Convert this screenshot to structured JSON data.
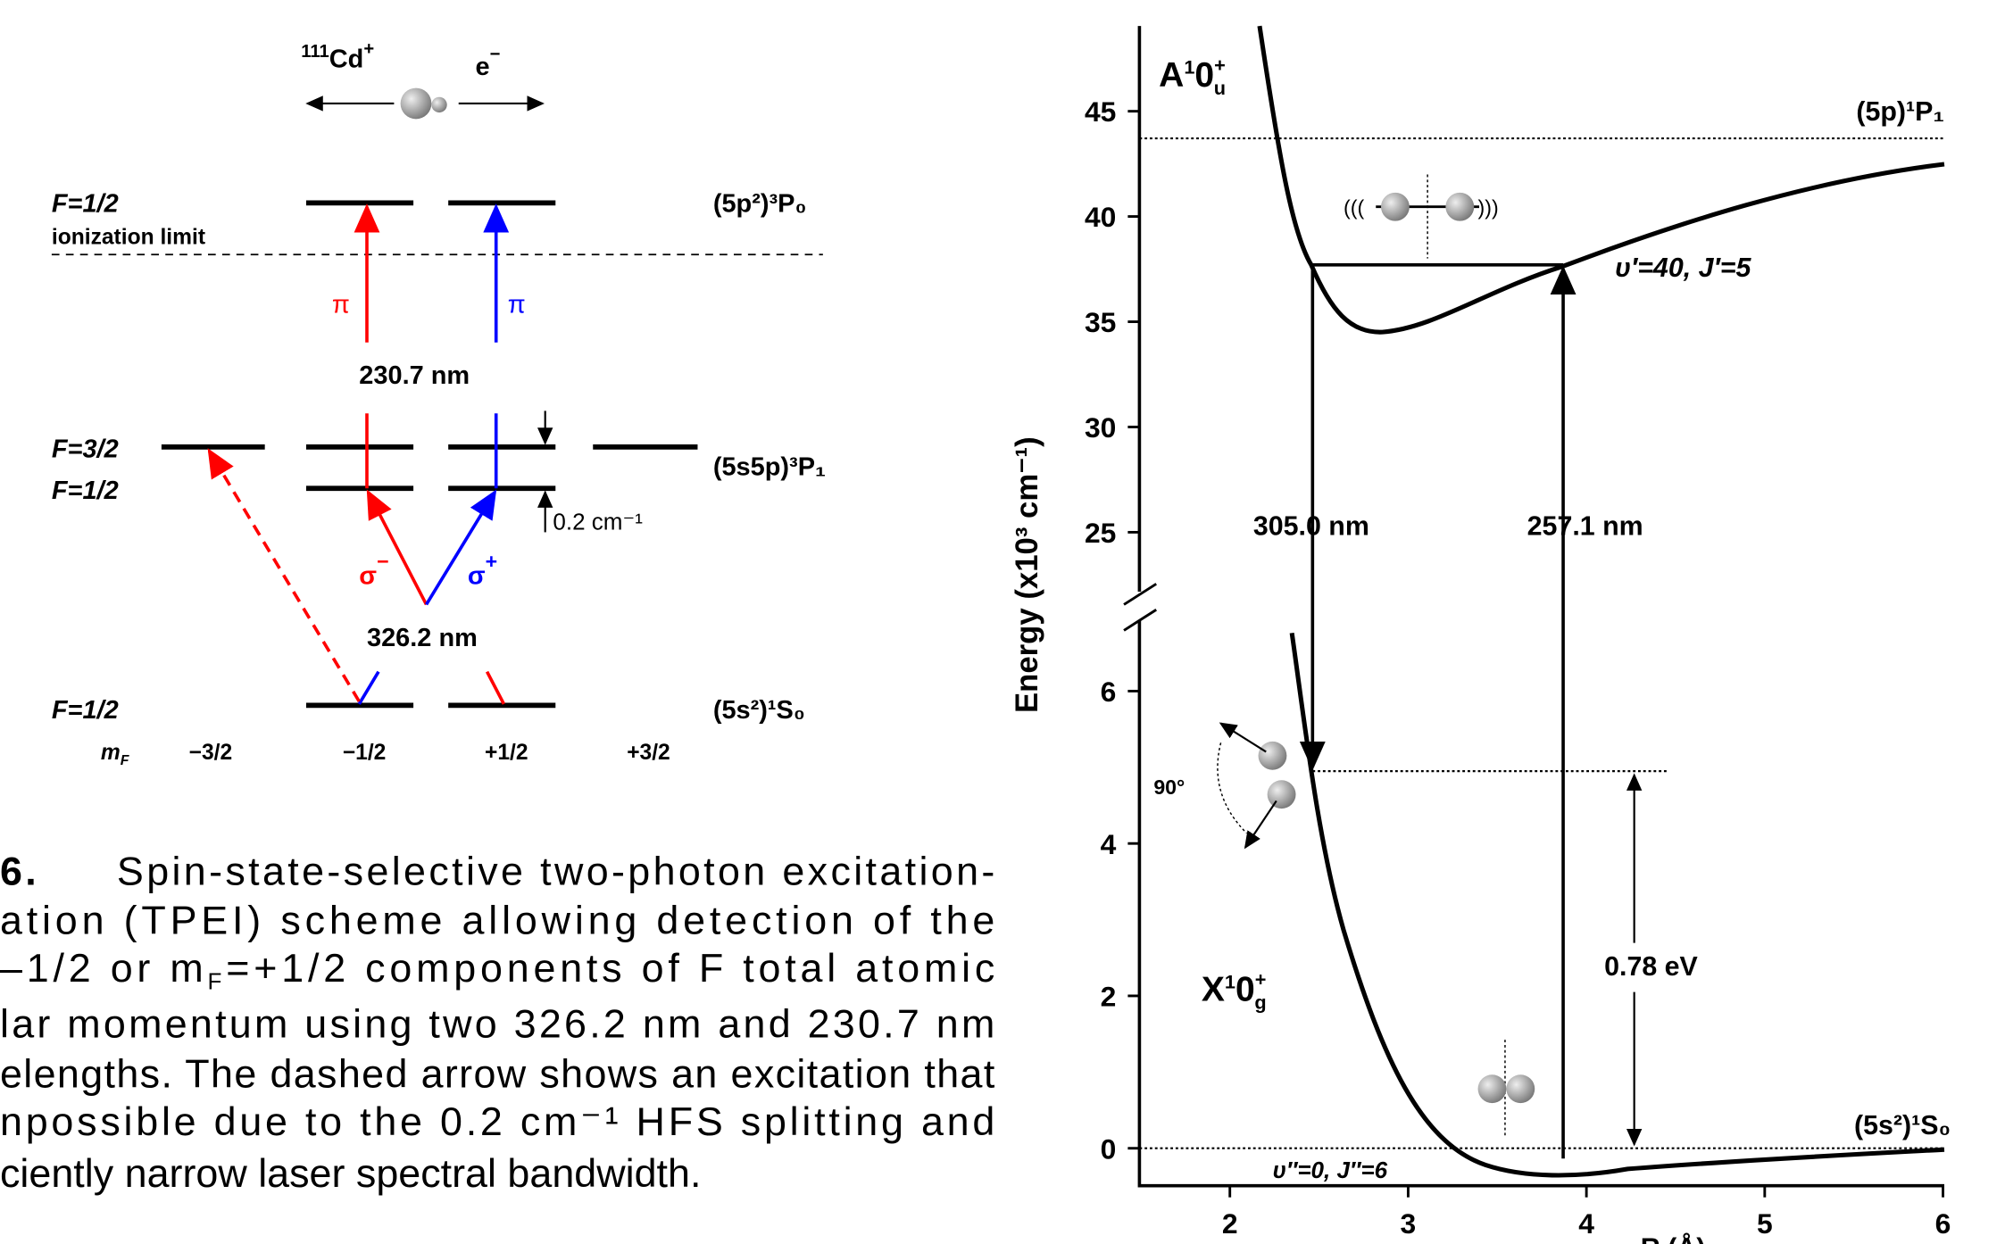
{
  "left_diagram": {
    "ion": {
      "mass": "111",
      "symbol": "Cd",
      "charge": "+"
    },
    "electron": {
      "symbol": "e",
      "charge": "−"
    },
    "levels": [
      {
        "f": "F=1/2",
        "term": "(5p²)³P₀"
      },
      {
        "f": "F=3/2",
        "term": "(5s5p)³P₁"
      },
      {
        "f": "F=1/2"
      },
      {
        "f": "F=1/2",
        "term": "(5s²)¹S₀"
      }
    ],
    "ionization_limit": "ionization limit",
    "pi_labels": [
      "π",
      "π"
    ],
    "uv_wavelength": "230.7 nm",
    "splitting": "0.2 cm⁻¹",
    "sigma_labels": [
      {
        "symbol": "σ",
        "sign": "−"
      },
      {
        "symbol": "σ",
        "sign": "+"
      }
    ],
    "vis_wavelength": "326.2 nm",
    "mf": {
      "symbol": "m",
      "subscript": "F"
    },
    "mf_values": [
      "−3/2",
      "−1/2",
      "+1/2",
      "+3/2"
    ]
  },
  "caption": {
    "number": "6.",
    "lines": [
      "Spin-state-selective two-photon excitation-",
      "ation (TPEI) scheme allowing detection of the",
      {
        "start": "–1/2 or m",
        "subscript": "F",
        "rest": "=+1/2  components of F total atomic"
      },
      "lar momentum using two 326.2 nm and 230.7 nm",
      "elengths. The dashed arrow shows an excitation that",
      "npossible due to the 0.2 cm⁻¹  HFS splitting and",
      "ciently narrow laser spectral bandwidth."
    ]
  },
  "energy_chart": {
    "y_label": "Energy (x10³ cm⁻¹)",
    "upper_yticks": [
      45,
      40,
      35,
      30,
      25
    ],
    "lower_yticks": [
      6,
      4,
      2,
      0
    ],
    "xticks": [
      2,
      3,
      4,
      5,
      6
    ],
    "x_label": "R (Å)",
    "upper_state": {
      "letter": "A",
      "spin": "1",
      "omega": "0",
      "parity": "+",
      "symmetry": "u"
    },
    "lower_state": {
      "letter": "X",
      "spin": "1",
      "omega": "0",
      "parity": "+",
      "symmetry": "g"
    },
    "asymptotes": [
      "(5p)¹P₁",
      "(5s²)¹S₀"
    ],
    "upper_level": "υ′=40, J′=5",
    "lower_level": "υ″=0, J″=6",
    "wavelengths": [
      "305.0 nm",
      "257.1 nm"
    ],
    "binding_energy": "0.78 eV",
    "angle": "90°"
  }
}
